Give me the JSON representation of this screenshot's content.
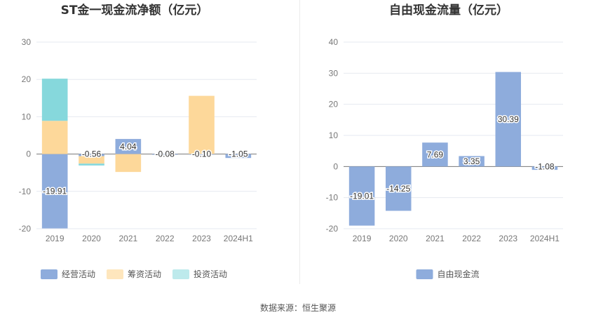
{
  "source_text": "数据来源：恒生聚源",
  "chart_data": [
    {
      "type": "bar",
      "stacked": true,
      "title": "ST金一现金流净额（亿元）",
      "categories": [
        "2019",
        "2020",
        "2021",
        "2022",
        "2023",
        "2024H1"
      ],
      "ylim": [
        -20,
        30
      ],
      "yticks": [
        -20,
        -10,
        0,
        10,
        20,
        30
      ],
      "grid": true,
      "legend_position": "bottom",
      "series": [
        {
          "name": "经营活动",
          "color": "#8eacdc",
          "values": [
            -19.91,
            -0.56,
            4.04,
            -0.08,
            -0.1,
            -1.05
          ]
        },
        {
          "name": "筹资活动",
          "color": "#fdd89a",
          "values": [
            8.9,
            -2.0,
            -4.8,
            0.0,
            15.6,
            0.0
          ]
        },
        {
          "name": "投资活动",
          "color": "#86d8dc",
          "values": [
            11.3,
            -0.5,
            0.0,
            0.0,
            0.0,
            0.0
          ]
        }
      ],
      "data_labels": [
        "-19.91",
        "-0.56",
        "4.04",
        "-0.08",
        "-0.10",
        "-1.05"
      ]
    },
    {
      "type": "bar",
      "title": "自由现金流量（亿元）",
      "categories": [
        "2019",
        "2020",
        "2021",
        "2022",
        "2023",
        "2024H1"
      ],
      "ylim": [
        -20,
        40
      ],
      "yticks": [
        -20,
        -10,
        0,
        10,
        20,
        30,
        40
      ],
      "grid": true,
      "legend_position": "bottom",
      "series": [
        {
          "name": "自由现金流",
          "color": "#8eacdc",
          "values": [
            -19.01,
            -14.25,
            7.69,
            3.35,
            30.39,
            -1.08
          ]
        }
      ],
      "data_labels": [
        "-19.01",
        "-14.25",
        "7.69",
        "3.35",
        "30.39",
        "-1.08"
      ]
    }
  ]
}
